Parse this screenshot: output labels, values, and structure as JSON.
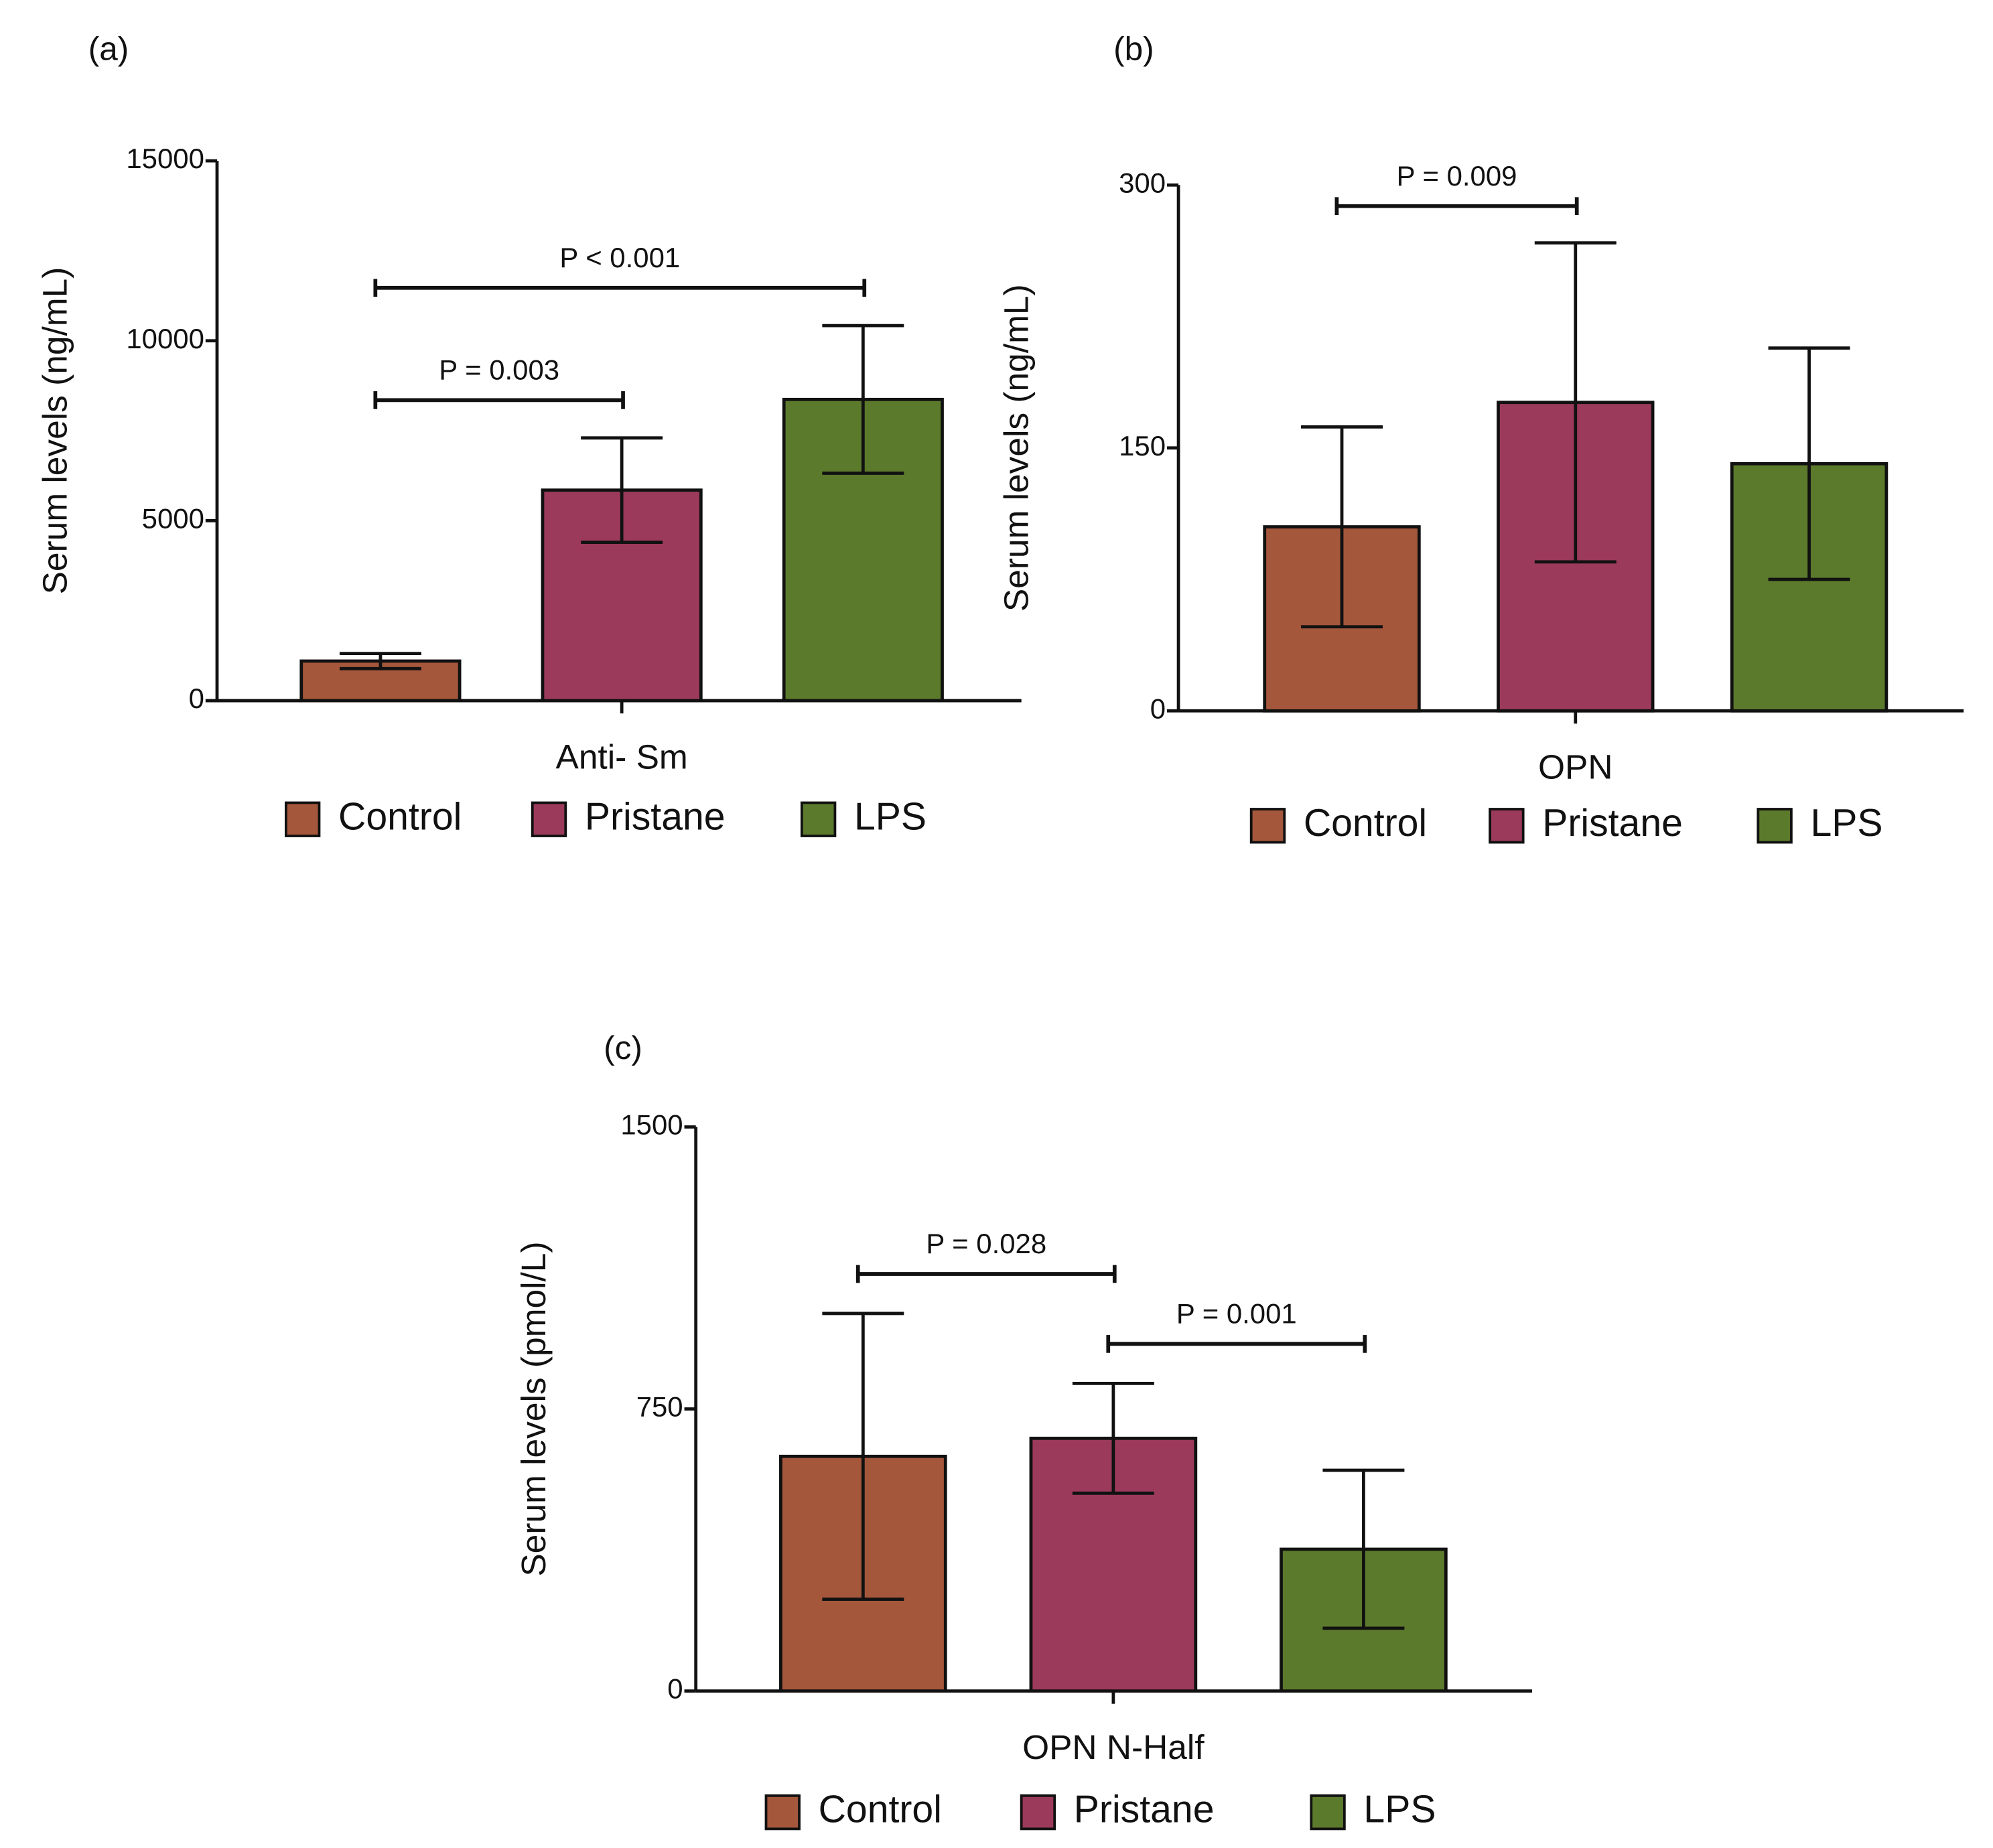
{
  "chart_data": [
    {
      "type": "bar",
      "panel": "(a)",
      "ylabel": "Serum levels (ng/mL)",
      "xlabel": "Anti- Sm",
      "ylim": [
        0,
        15000
      ],
      "yticks": [
        0,
        5000,
        10000,
        15000
      ],
      "series": [
        {
          "name": "Control",
          "color": "#a5573c",
          "label_color": "#7a2a14",
          "values": [
            1100
          ],
          "errors": [
            210
          ]
        },
        {
          "name": "Pristane",
          "color": "#9c3a5c",
          "label_color": "#6d1a3a",
          "values": [
            5850
          ],
          "errors": [
            1450
          ]
        },
        {
          "name": "LPS",
          "color": "#5c7a2c",
          "label_color": "#3f5e1a",
          "values": [
            8370
          ],
          "errors": [
            2050
          ]
        }
      ],
      "annotations": [
        {
          "text": "P = 0.003",
          "groups": [
            0,
            1
          ]
        },
        {
          "text": "P < 0.001",
          "groups": [
            0,
            2
          ]
        }
      ]
    },
    {
      "type": "bar",
      "panel": "(b)",
      "ylabel": "Serum levels (ng/mL)",
      "xlabel": "OPN",
      "ylim": [
        0,
        300
      ],
      "yticks": [
        0,
        150,
        300
      ],
      "series": [
        {
          "name": "Control",
          "color": "#a5573c",
          "label_color": "#7a2a14",
          "values": [
            105
          ],
          "errors": [
            57
          ]
        },
        {
          "name": "Pristane",
          "color": "#9c3a5c",
          "label_color": "#6d1a3a",
          "values": [
            176
          ],
          "errors": [
            91
          ]
        },
        {
          "name": "LPS",
          "color": "#5c7a2c",
          "label_color": "#3f5e1a",
          "values": [
            141
          ],
          "errors": [
            66
          ]
        }
      ],
      "annotations": [
        {
          "text": "P = 0.009",
          "groups": [
            0,
            1
          ]
        }
      ]
    },
    {
      "type": "bar",
      "panel": "(c)",
      "ylabel": "Serum levels (pmol/L)",
      "xlabel": "OPN N-Half",
      "ylim": [
        0,
        1500
      ],
      "yticks": [
        0,
        750,
        1500
      ],
      "series": [
        {
          "name": "Control",
          "color": "#a5573c",
          "label_color": "#7a2a14",
          "values": [
            624
          ],
          "errors": [
            380
          ]
        },
        {
          "name": "Pristane",
          "color": "#9c3a5c",
          "label_color": "#6d1a3a",
          "values": [
            672
          ],
          "errors": [
            146
          ]
        },
        {
          "name": "LPS",
          "color": "#5c7a2c",
          "label_color": "#3f5e1a",
          "values": [
            377
          ],
          "errors": [
            210
          ]
        }
      ],
      "annotations": [
        {
          "text": "P = 0.028",
          "groups": [
            0,
            1
          ]
        },
        {
          "text": "P = 0.001",
          "groups": [
            1,
            2
          ]
        }
      ]
    }
  ]
}
